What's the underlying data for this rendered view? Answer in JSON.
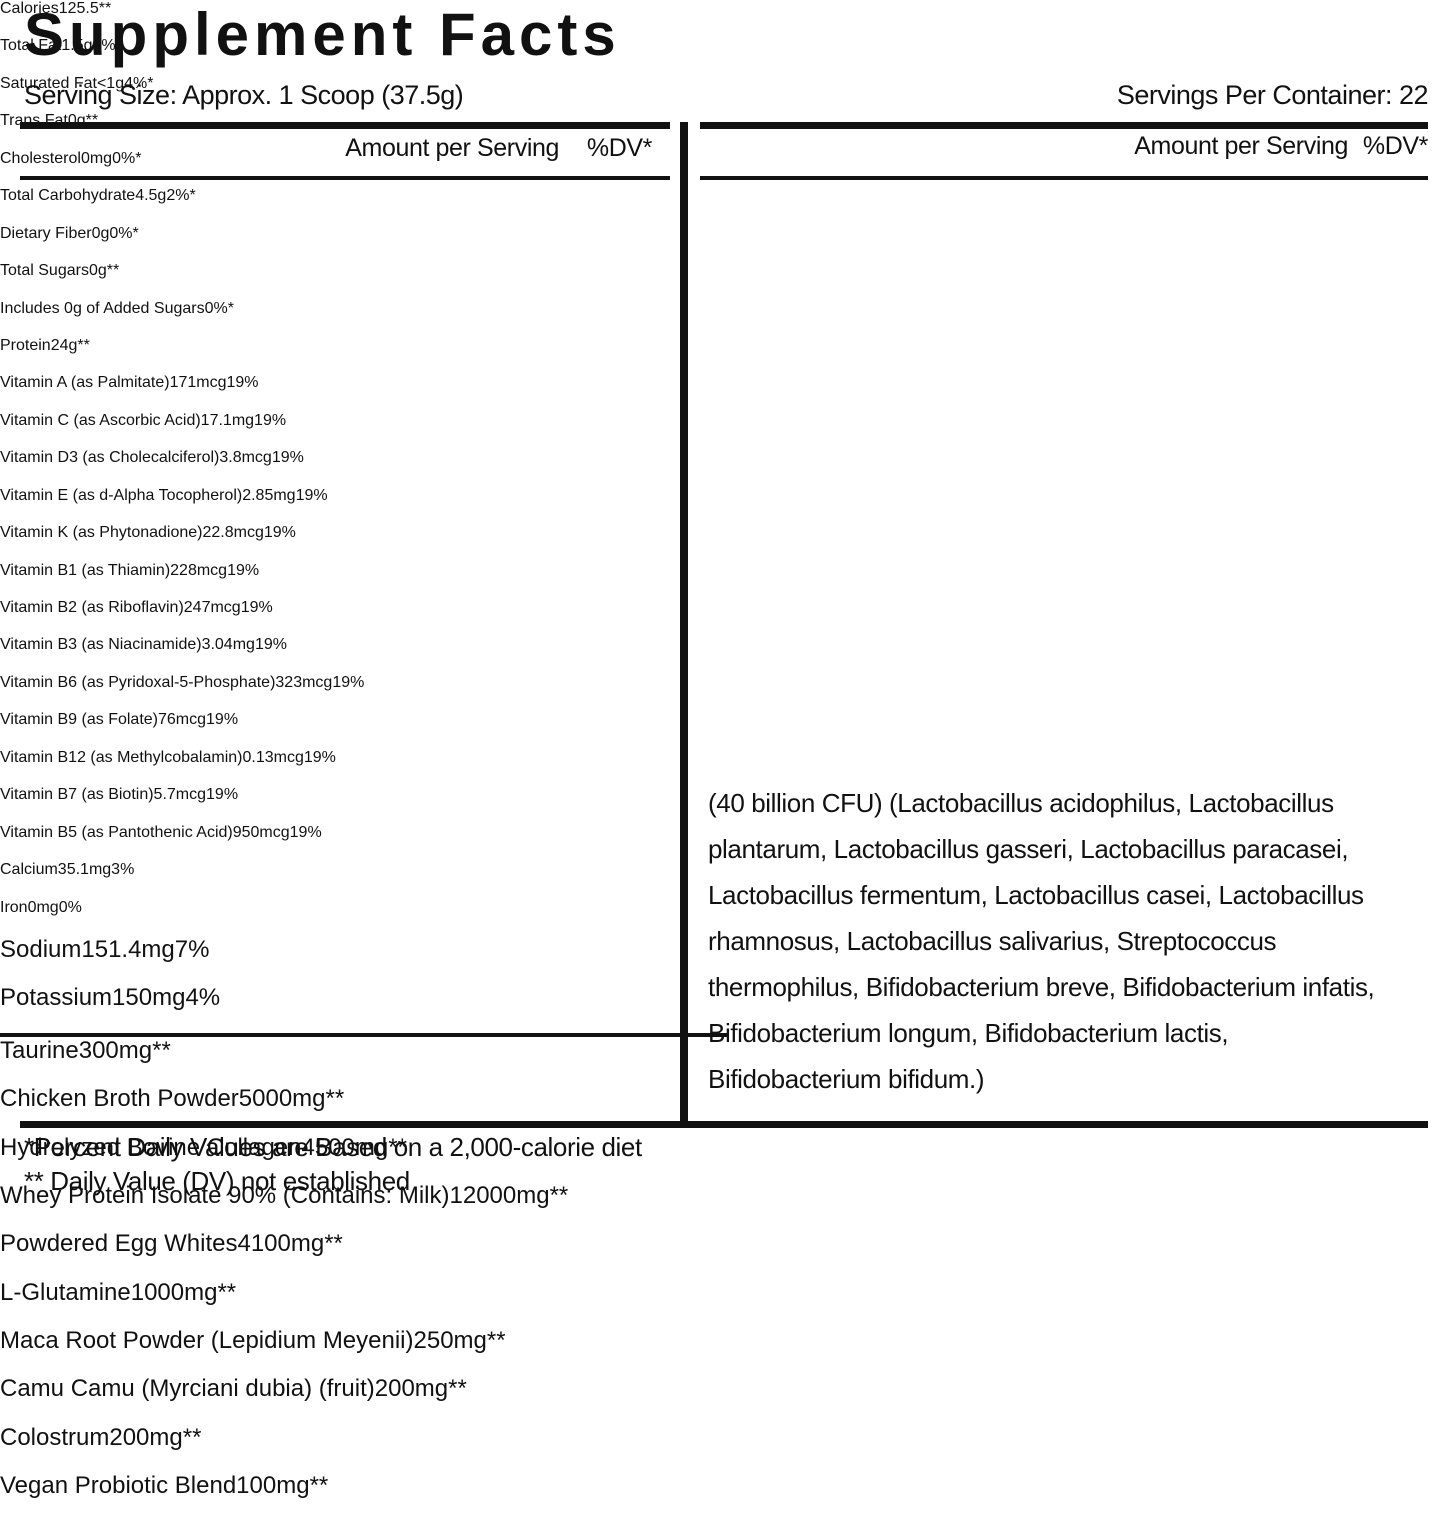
{
  "title": "Supplement Facts",
  "serving_size": "Serving Size: Approx. 1 Scoop (37.5g)",
  "servings_per_container": "Servings Per Container: 22",
  "left": {
    "header": [
      "Amount per Serving",
      "%DV*"
    ],
    "rows": [
      [
        "Calories",
        "125.5",
        "**"
      ],
      [
        "Total Fat",
        "1.5g",
        "2%*"
      ],
      [
        "Saturated Fat",
        "<1g",
        "4%*"
      ],
      [
        "Trans Fat",
        "0g",
        "**"
      ],
      [
        "Cholesterol",
        "0mg",
        "0%*"
      ],
      [
        "Total Carbohydrate",
        "4.5g",
        "2%*"
      ],
      [
        "Dietary Fiber",
        "0g",
        "0%*"
      ],
      [
        "Total Sugars",
        "0g",
        "**"
      ],
      [
        "Includes 0g of Added Sugars",
        "",
        "0%*"
      ],
      [
        "Protein",
        "24g",
        "**"
      ],
      [
        "Vitamin A (as Palmitate)",
        "171mcg",
        "19%"
      ],
      [
        "Vitamin C (as Ascorbic Acid)",
        "17.1mg",
        "19%"
      ],
      [
        "Vitamin D3 (as Cholecalciferol)",
        "3.8mcg",
        "19%"
      ],
      [
        "Vitamin E (as d-Alpha Tocopherol)",
        "2.85mg",
        "19%"
      ],
      [
        "Vitamin K (as Phytonadione)",
        "22.8mcg",
        "19%"
      ],
      [
        "Vitamin B1 (as Thiamin)",
        "228mcg",
        "19%"
      ],
      [
        "Vitamin B2 (as Riboflavin)",
        "247mcg",
        "19%"
      ],
      [
        "Vitamin B3 (as Niacinamide)",
        "3.04mg",
        "19%"
      ],
      [
        "Vitamin B6 (as Pyridoxal-5-Phosphate)",
        "323mcg",
        "19%"
      ],
      [
        "Vitamin B9 (as Folate)",
        "76mcg",
        "19%"
      ],
      [
        "Vitamin B12 (as Methylcobalamin)",
        "0.13mcg",
        "19%"
      ],
      [
        "Vitamin B7 (as Biotin)",
        "5.7mcg",
        "19%"
      ],
      [
        "Vitamin B5 (as Pantothenic Acid)",
        "950mcg",
        "19%"
      ],
      [
        "Calcium",
        "35.1mg",
        "3%"
      ],
      [
        "Iron",
        "0mg",
        "0%"
      ]
    ]
  },
  "right": {
    "header": [
      "Amount per Serving",
      "%DV*"
    ],
    "rows": [
      [
        "Sodium",
        "151.4mg",
        "7%"
      ],
      [
        "Potassium",
        "150mg",
        "4%"
      ],
      [
        "Taurine",
        "300mg",
        "**"
      ],
      [
        "Chicken Broth Powder",
        "5000mg",
        "**"
      ],
      [
        "Hydrolyzed Bovine Collagen",
        "4500mg",
        "**"
      ],
      [
        "Whey Protein Isolate 90% (Contains: Milk)",
        "12000mg",
        "**"
      ],
      [
        "Powdered Egg Whites",
        "4100mg",
        "**"
      ],
      [
        "L-Glutamine",
        "1000mg",
        "**"
      ],
      [
        "Maca Root Powder (Lepidium Meyenii)",
        "250mg",
        "**"
      ],
      [
        "Camu Camu (Myrciani dubia) (fruit)",
        "200mg",
        "**"
      ],
      [
        "Colostrum",
        "200mg",
        "**"
      ],
      [
        "Vegan Probiotic Blend",
        "100mg",
        "**"
      ]
    ],
    "note": "(40 billion CFU) (Lactobacillus acidophilus, Lactobacillus plantarum, Lactobacillus gasseri, Lactobacillus paracasei, Lactobacillus fermentum, Lactobacillus casei, Lactobacillus rhamnosus, Lactobacillus salivarius, Streptococcus thermophilus, Bifidobacterium breve, Bifidobacterium infatis, Bifidobacterium longum, Bifidobacterium lactis, Bifidobacterium bifidum.)"
  },
  "footnotes": [
    "*Percent Daily Values are Based on a 2,000-calorie diet",
    "** Daily Value (DV) not established"
  ]
}
